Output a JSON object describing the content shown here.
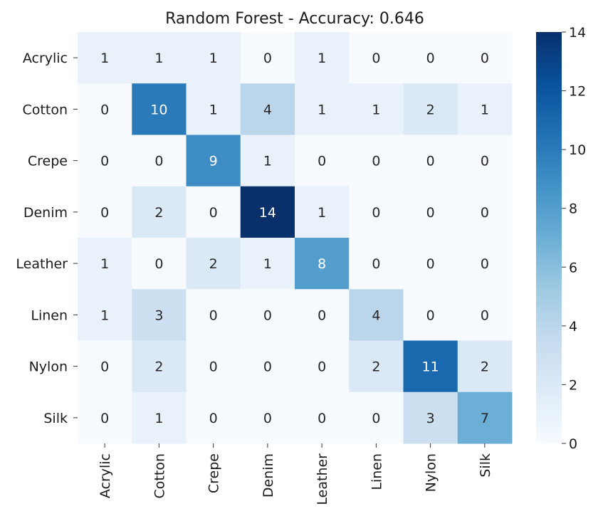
{
  "chart_data": {
    "type": "heatmap",
    "title": "Random Forest - Accuracy: 0.646",
    "xlabel": "",
    "ylabel": "",
    "row_labels": [
      "Acrylic",
      "Cotton",
      "Crepe",
      "Denim",
      "Leather",
      "Linen",
      "Nylon",
      "Silk"
    ],
    "col_labels": [
      "Acrylic",
      "Cotton",
      "Crepe",
      "Denim",
      "Leather",
      "Linen",
      "Nylon",
      "Silk"
    ],
    "values": [
      [
        1,
        1,
        1,
        0,
        1,
        0,
        0,
        0
      ],
      [
        0,
        10,
        1,
        4,
        1,
        1,
        2,
        1
      ],
      [
        0,
        0,
        9,
        1,
        0,
        0,
        0,
        0
      ],
      [
        0,
        2,
        0,
        14,
        1,
        0,
        0,
        0
      ],
      [
        1,
        0,
        2,
        1,
        8,
        0,
        0,
        0
      ],
      [
        1,
        3,
        0,
        0,
        0,
        4,
        0,
        0
      ],
      [
        0,
        2,
        0,
        0,
        0,
        2,
        11,
        2
      ],
      [
        0,
        1,
        0,
        0,
        0,
        0,
        3,
        7
      ]
    ],
    "colorbar": {
      "min": 0,
      "max": 14,
      "ticks": [
        0,
        2,
        4,
        6,
        8,
        10,
        12,
        14
      ],
      "colormap": "Blues",
      "low_color": "#f7fbff",
      "high_color": "#08306b"
    },
    "annotation_colors": {
      "dark_text": "#262626",
      "light_text": "#ffffff"
    }
  }
}
